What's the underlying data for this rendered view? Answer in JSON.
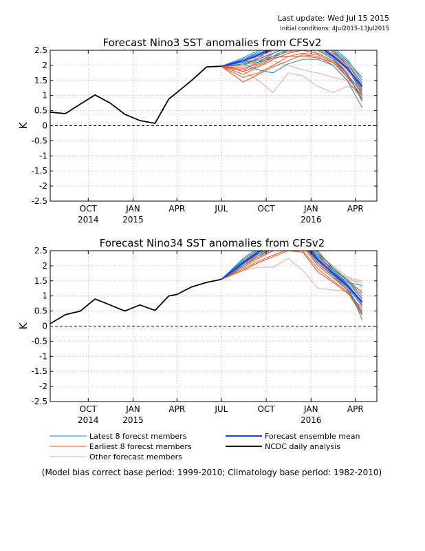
{
  "header": {
    "last_update": "Last update: Wed Jul 15 2015",
    "initial_conditions": "Initial conditions: 4Jul2015-13Jul2015"
  },
  "legend": {
    "latest": "Latest 8 forecst members",
    "earliest": "Earliest 8 forecst members",
    "other": "Other forecast members",
    "mean": "Forecast ensemble mean",
    "obs": "NCDC daily analysis"
  },
  "footnote": "(Model bias correct base period: 1999-2010; Climatology base period: 1982-2010)",
  "colors": {
    "latest": "#1e8fbf",
    "earliest": "#f0501e",
    "other": "#e8a898",
    "mean": "#1c3cf0",
    "obs": "#000000"
  },
  "chart_data": [
    {
      "type": "line",
      "title": "Forecast Nino3 SST anomalies from CFSv2",
      "ylabel": "K",
      "ylim": [
        -2.5,
        2.5
      ],
      "yticks": [
        2.5,
        2,
        1.5,
        1,
        0.5,
        0,
        -0.5,
        -1,
        -1.5,
        -2,
        -2.5
      ],
      "ytick_labels": [
        "2.5",
        "2",
        "1.5",
        "1",
        "0.5",
        "0",
        "-0.5",
        "-1",
        "-1.5",
        "-2",
        "-2.5"
      ],
      "xlim": [
        "2014-07-15",
        "2016-05-15"
      ],
      "xticks": [
        "2014-10-01",
        "2015-01-01",
        "2015-04-01",
        "2015-07-01",
        "2015-10-01",
        "2016-01-01",
        "2016-04-01"
      ],
      "xtick_labels": [
        "OCT",
        "JAN",
        "APR",
        "JUL",
        "OCT",
        "JAN",
        "APR"
      ],
      "xtick_years": [
        {
          "date": "2014-10-01",
          "label": "2014"
        },
        {
          "date": "2015-01-01",
          "label": "2015"
        },
        {
          "date": "2016-01-01",
          "label": "2016"
        }
      ],
      "grid": true,
      "zero_line": "dashed",
      "observed": {
        "name": "NCDC daily analysis",
        "x": [
          "2014-07-15",
          "2014-08-15",
          "2014-09-15",
          "2014-10-15",
          "2014-11-15",
          "2014-12-15",
          "2015-01-15",
          "2015-02-15",
          "2015-03-15",
          "2015-04-01",
          "2015-05-01",
          "2015-06-01",
          "2015-07-01"
        ],
        "y": [
          0.45,
          0.4,
          0.72,
          1.02,
          0.75,
          0.38,
          0.17,
          0.08,
          0.88,
          1.1,
          1.5,
          1.95,
          1.97
        ]
      },
      "forecast_x": [
        "2015-07-01",
        "2015-08-15",
        "2015-09-15",
        "2015-10-15",
        "2015-11-15",
        "2015-12-15",
        "2016-01-15",
        "2016-02-15",
        "2016-03-15",
        "2016-04-15"
      ],
      "ensemble_mean": [
        1.97,
        2.15,
        2.35,
        2.55,
        2.7,
        2.75,
        2.65,
        2.3,
        1.9,
        1.3
      ],
      "latest": [
        [
          1.97,
          2.1,
          2.2,
          2.4,
          2.6,
          2.7,
          2.6,
          2.35,
          1.9,
          1.2
        ],
        [
          1.97,
          2.05,
          1.85,
          1.75,
          2.05,
          2.2,
          2.2,
          2.0,
          1.5,
          0.6
        ],
        [
          1.97,
          2.2,
          2.45,
          2.7,
          2.8,
          2.7,
          2.6,
          2.5,
          2.1,
          1.4
        ],
        [
          1.97,
          2.15,
          2.3,
          2.5,
          2.7,
          2.9,
          2.8,
          2.45,
          2.0,
          1.0
        ],
        [
          1.97,
          2.25,
          2.5,
          2.6,
          2.75,
          2.8,
          2.7,
          2.6,
          2.2,
          1.5
        ],
        [
          1.97,
          2.1,
          2.15,
          2.3,
          2.55,
          2.65,
          2.55,
          2.25,
          1.75,
          0.85
        ],
        [
          1.97,
          2.2,
          2.4,
          2.6,
          2.8,
          2.85,
          2.8,
          2.55,
          2.15,
          1.6
        ],
        [
          1.97,
          2.05,
          2.1,
          2.25,
          2.5,
          2.6,
          2.5,
          2.2,
          1.7,
          1.1
        ]
      ],
      "earliest": [
        [
          1.97,
          1.9,
          2.05,
          2.3,
          2.45,
          2.6,
          2.5,
          2.2,
          1.75,
          0.8
        ],
        [
          1.97,
          1.6,
          1.75,
          2.0,
          2.3,
          2.4,
          2.35,
          2.1,
          1.65,
          0.95
        ],
        [
          1.97,
          1.8,
          2.0,
          2.25,
          2.3,
          2.3,
          2.25,
          2.1,
          1.6,
          1.0
        ],
        [
          1.97,
          1.45,
          1.7,
          1.95,
          2.15,
          2.35,
          2.3,
          2.0,
          1.5,
          0.9
        ],
        [
          1.97,
          2.15,
          2.35,
          2.6,
          2.7,
          2.75,
          2.6,
          2.35,
          1.95,
          1.2
        ],
        [
          1.97,
          2.0,
          2.25,
          2.55,
          2.8,
          2.9,
          2.7,
          2.5,
          2.0,
          1.1
        ],
        [
          1.97,
          1.7,
          1.95,
          2.2,
          2.4,
          2.5,
          2.4,
          2.15,
          1.7,
          0.85
        ],
        [
          1.97,
          1.85,
          2.1,
          2.4,
          2.6,
          2.7,
          2.6,
          2.4,
          2.1,
          1.3
        ]
      ],
      "other": [
        [
          1.97,
          1.8,
          1.5,
          1.1,
          1.75,
          1.65,
          1.3,
          1.1,
          1.3,
          1.2
        ],
        [
          1.97,
          1.8,
          1.95,
          2.15,
          2.0,
          1.85,
          1.75,
          1.6,
          1.5,
          1.4
        ],
        [
          1.97,
          2.0,
          2.2,
          2.45,
          2.6,
          2.65,
          2.55,
          2.25,
          1.8,
          1.2
        ],
        [
          1.97,
          2.1,
          2.3,
          2.5,
          2.65,
          2.75,
          2.6,
          2.35,
          2.0,
          1.5
        ],
        [
          1.97,
          2.05,
          2.25,
          2.4,
          2.55,
          2.6,
          2.5,
          2.2,
          1.85,
          1.25
        ],
        [
          1.97,
          2.2,
          2.4,
          2.65,
          2.8,
          2.85,
          2.7,
          2.45,
          2.05,
          1.6
        ],
        [
          1.97,
          2.0,
          2.15,
          2.35,
          2.5,
          2.55,
          2.45,
          2.3,
          1.95,
          1.4
        ],
        [
          1.97,
          2.1,
          2.35,
          2.55,
          2.7,
          2.8,
          2.65,
          2.4,
          2.0,
          1.35
        ],
        [
          1.97,
          1.95,
          2.1,
          2.3,
          2.45,
          2.5,
          2.4,
          2.15,
          1.7,
          1.05
        ],
        [
          1.97,
          2.15,
          2.3,
          2.5,
          2.6,
          2.7,
          2.55,
          2.3,
          1.9,
          1.15
        ]
      ]
    },
    {
      "type": "line",
      "title": "Forecast Nino34 SST anomalies from CFSv2",
      "ylabel": "K",
      "ylim": [
        -2.5,
        2.5
      ],
      "yticks": [
        2.5,
        2,
        1.5,
        1,
        0.5,
        0,
        -0.5,
        -1,
        -1.5,
        -2,
        -2.5
      ],
      "ytick_labels": [
        "2.5",
        "2",
        "1.5",
        "1",
        "0.5",
        "0",
        "-0.5",
        "-1",
        "-1.5",
        "-2",
        "-2.5"
      ],
      "xlim": [
        "2014-07-15",
        "2016-05-15"
      ],
      "xticks": [
        "2014-10-01",
        "2015-01-01",
        "2015-04-01",
        "2015-07-01",
        "2015-10-01",
        "2016-01-01",
        "2016-04-01"
      ],
      "xtick_labels": [
        "OCT",
        "JAN",
        "APR",
        "JUL",
        "OCT",
        "JAN",
        "APR"
      ],
      "xtick_years": [
        {
          "date": "2014-10-01",
          "label": "2014"
        },
        {
          "date": "2015-01-01",
          "label": "2015"
        },
        {
          "date": "2016-01-01",
          "label": "2016"
        }
      ],
      "grid": true,
      "zero_line": "dashed",
      "observed": {
        "name": "NCDC daily analysis",
        "x": [
          "2014-07-15",
          "2014-08-15",
          "2014-09-15",
          "2014-10-15",
          "2014-11-15",
          "2014-12-15",
          "2015-01-15",
          "2015-02-15",
          "2015-03-15",
          "2015-04-01",
          "2015-05-01",
          "2015-06-01",
          "2015-07-01"
        ],
        "y": [
          0.08,
          0.38,
          0.5,
          0.9,
          0.7,
          0.5,
          0.7,
          0.52,
          1.0,
          1.05,
          1.3,
          1.45,
          1.55
        ]
      },
      "forecast_x": [
        "2015-07-01",
        "2015-08-15",
        "2015-09-15",
        "2015-10-15",
        "2015-11-15",
        "2015-12-15",
        "2016-01-15",
        "2016-02-15",
        "2016-03-15",
        "2016-04-15"
      ],
      "ensemble_mean": [
        1.55,
        2.1,
        2.45,
        2.7,
        2.85,
        2.8,
        2.2,
        1.75,
        1.35,
        0.8
      ],
      "latest": [
        [
          1.55,
          2.15,
          2.4,
          2.65,
          2.8,
          2.75,
          2.15,
          1.75,
          1.35,
          0.7
        ],
        [
          1.55,
          2.05,
          2.5,
          2.7,
          2.9,
          2.9,
          2.4,
          1.8,
          1.4,
          0.2
        ],
        [
          1.55,
          2.2,
          2.55,
          2.8,
          2.85,
          2.8,
          2.3,
          1.9,
          1.5,
          0.9
        ],
        [
          1.55,
          2.1,
          2.4,
          2.6,
          2.7,
          2.7,
          2.25,
          1.7,
          1.3,
          0.65
        ],
        [
          1.55,
          2.25,
          2.6,
          2.85,
          2.95,
          2.85,
          2.45,
          1.95,
          1.55,
          1.0
        ],
        [
          1.55,
          2.0,
          2.35,
          2.55,
          2.75,
          2.7,
          2.1,
          1.65,
          1.2,
          0.45
        ],
        [
          1.55,
          2.15,
          2.45,
          2.7,
          2.8,
          2.8,
          2.35,
          1.85,
          1.45,
          1.35
        ],
        [
          1.55,
          2.1,
          2.5,
          2.75,
          2.9,
          2.85,
          2.2,
          1.75,
          1.4,
          0.8
        ]
      ],
      "earliest": [
        [
          1.55,
          1.9,
          2.15,
          2.35,
          2.55,
          2.5,
          1.9,
          1.5,
          1.15,
          0.35
        ],
        [
          1.55,
          2.0,
          2.3,
          2.6,
          2.8,
          2.75,
          2.1,
          1.7,
          1.25,
          0.5
        ],
        [
          1.55,
          2.2,
          2.55,
          2.8,
          2.95,
          2.9,
          2.5,
          1.9,
          1.5,
          0.9
        ],
        [
          1.55,
          1.85,
          2.1,
          2.3,
          2.5,
          2.45,
          1.8,
          1.45,
          1.1,
          0.6
        ],
        [
          1.55,
          2.05,
          2.4,
          2.65,
          2.85,
          2.8,
          2.3,
          1.85,
          1.4,
          0.75
        ],
        [
          1.55,
          2.15,
          2.5,
          2.75,
          2.9,
          2.85,
          2.4,
          1.95,
          1.55,
          1.1
        ],
        [
          1.55,
          1.95,
          2.25,
          2.5,
          2.7,
          2.7,
          2.0,
          1.6,
          1.2,
          0.4
        ],
        [
          1.55,
          2.1,
          2.45,
          2.7,
          2.85,
          2.8,
          2.25,
          1.8,
          1.35,
          0.7
        ]
      ],
      "other": [
        [
          1.55,
          1.85,
          1.95,
          1.95,
          2.25,
          1.85,
          1.25,
          1.2,
          1.15,
          1.1
        ],
        [
          1.55,
          2.0,
          2.3,
          2.55,
          2.7,
          2.7,
          2.2,
          1.85,
          1.6,
          1.5
        ],
        [
          1.55,
          2.1,
          2.4,
          2.65,
          2.85,
          2.8,
          2.3,
          1.9,
          1.5,
          1.0
        ],
        [
          1.55,
          2.05,
          2.35,
          2.6,
          2.75,
          2.7,
          2.1,
          1.7,
          1.4,
          0.95
        ],
        [
          1.55,
          2.2,
          2.5,
          2.75,
          2.9,
          2.85,
          2.4,
          2.0,
          1.65,
          1.3
        ],
        [
          1.55,
          1.95,
          2.25,
          2.5,
          2.65,
          2.6,
          2.0,
          1.6,
          1.3,
          0.85
        ],
        [
          1.55,
          2.15,
          2.45,
          2.7,
          2.85,
          2.75,
          2.25,
          1.8,
          1.45,
          1.15
        ],
        [
          1.55,
          2.05,
          2.4,
          2.6,
          2.8,
          2.75,
          2.15,
          1.75,
          1.35,
          0.9
        ],
        [
          1.55,
          2.1,
          2.35,
          2.55,
          2.7,
          2.65,
          2.05,
          1.65,
          1.3,
          1.2
        ],
        [
          1.55,
          2.0,
          2.3,
          2.5,
          2.7,
          2.7,
          2.3,
          1.9,
          1.55,
          1.45
        ]
      ]
    }
  ]
}
